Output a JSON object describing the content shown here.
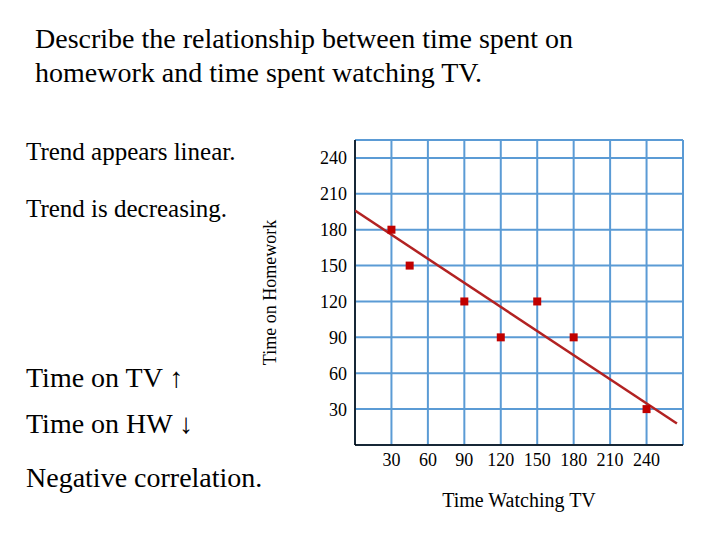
{
  "chart_data": {
    "type": "scatter",
    "title": "Describe the relationship between time spent on homework and time spent watching TV.",
    "x_label": "Time Watching TV",
    "y_label": "Time on Homework",
    "x": [
      30,
      45,
      90,
      120,
      150,
      180,
      240
    ],
    "values": [
      180,
      150,
      120,
      90,
      120,
      90,
      30
    ],
    "color": "#c00000",
    "marker": "square",
    "xlim": [
      0,
      270
    ],
    "ylim": [
      0,
      255
    ],
    "xticks": [
      30,
      60,
      90,
      120,
      150,
      180,
      210,
      240
    ],
    "yticks": [
      30,
      60,
      90,
      120,
      150,
      180,
      210,
      240
    ],
    "grid": true,
    "trend_line": {
      "x": [
        0,
        265
      ],
      "values": [
        196,
        18
      ],
      "color": "#b22222",
      "line_style": "solid"
    },
    "annotations": [
      "Trend appears linear.",
      "Trend is decreasing.",
      "Time on TV ↑",
      "Time on HW ↓",
      "Negative correlation."
    ]
  }
}
